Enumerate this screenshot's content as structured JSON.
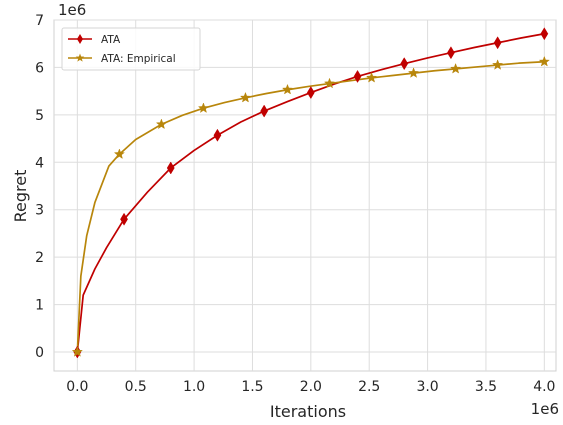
{
  "chart_data": {
    "type": "line",
    "title": "",
    "xlabel": "Iterations",
    "ylabel": "Regret",
    "x_offset_label": "1e6",
    "y_offset_label": "1e6",
    "xlim": [
      -0.2,
      4.1
    ],
    "ylim": [
      -0.4,
      7.0
    ],
    "x_scale": 1000000,
    "y_scale": 1000000,
    "xticks": [
      0.0,
      0.5,
      1.0,
      1.5,
      2.0,
      2.5,
      3.0,
      3.5,
      4.0
    ],
    "xtick_labels": [
      "0.0",
      "0.5",
      "1.0",
      "1.5",
      "2.0",
      "2.5",
      "3.0",
      "3.5",
      "4.0"
    ],
    "yticks": [
      0,
      1,
      2,
      3,
      4,
      5,
      6,
      7
    ],
    "ytick_labels": [
      "0",
      "1",
      "2",
      "3",
      "4",
      "5",
      "6",
      "7"
    ],
    "grid": true,
    "legend_position": "top-left",
    "series": [
      {
        "name": "ATA",
        "color": "#c00000",
        "marker": "diamond",
        "x": [
          0.0,
          0.05,
          0.15,
          0.25,
          0.4,
          0.6,
          0.8,
          1.0,
          1.2,
          1.4,
          1.6,
          1.8,
          2.0,
          2.2,
          2.4,
          2.6,
          2.8,
          3.0,
          3.2,
          3.4,
          3.6,
          3.8,
          4.0
        ],
        "y": [
          0.0,
          1.2,
          1.75,
          2.2,
          2.8,
          3.37,
          3.88,
          4.25,
          4.57,
          4.85,
          5.08,
          5.28,
          5.47,
          5.65,
          5.81,
          5.95,
          6.08,
          6.2,
          6.31,
          6.42,
          6.52,
          6.62,
          6.71
        ],
        "marker_x": [
          0.0,
          0.4,
          0.8,
          1.2,
          1.6,
          2.0,
          2.4,
          2.8,
          3.2,
          3.6,
          4.0
        ],
        "marker_y": [
          0.0,
          2.8,
          3.88,
          4.57,
          5.08,
          5.47,
          5.81,
          6.08,
          6.31,
          6.52,
          6.71
        ]
      },
      {
        "name": "ATA: Empirical",
        "color": "#b8860b",
        "marker": "star",
        "x": [
          0.0,
          0.03,
          0.08,
          0.15,
          0.27,
          0.36,
          0.5,
          0.72,
          0.9,
          1.08,
          1.26,
          1.44,
          1.62,
          1.8,
          1.98,
          2.16,
          2.34,
          2.52,
          2.7,
          2.88,
          3.06,
          3.24,
          3.42,
          3.6,
          3.78,
          4.0
        ],
        "y": [
          0.0,
          1.6,
          2.45,
          3.15,
          3.92,
          4.17,
          4.48,
          4.8,
          4.99,
          5.14,
          5.26,
          5.36,
          5.45,
          5.53,
          5.6,
          5.66,
          5.72,
          5.78,
          5.83,
          5.88,
          5.93,
          5.97,
          6.01,
          6.05,
          6.09,
          6.12
        ],
        "marker_x": [
          0.0,
          0.36,
          0.72,
          1.08,
          1.44,
          1.8,
          2.16,
          2.52,
          2.88,
          3.24,
          3.6,
          4.0
        ],
        "marker_y": [
          0.0,
          4.17,
          4.8,
          5.14,
          5.36,
          5.53,
          5.66,
          5.78,
          5.88,
          5.97,
          6.05,
          6.12
        ]
      }
    ]
  }
}
